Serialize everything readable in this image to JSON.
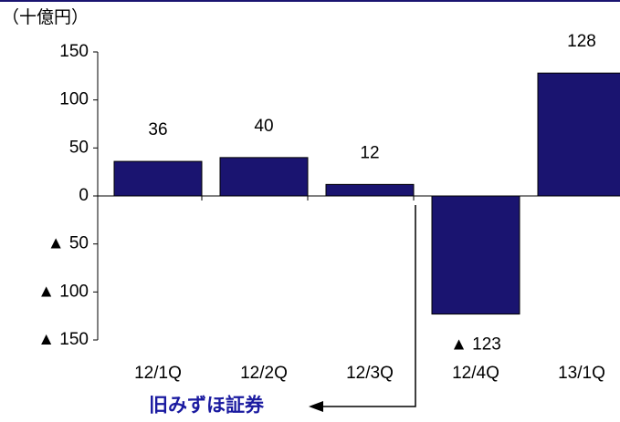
{
  "chart_data": {
    "type": "bar",
    "unit_label": "（十億円）",
    "categories": [
      "12/1Q",
      "12/2Q",
      "12/3Q",
      "12/4Q",
      "13/1Q"
    ],
    "values": [
      36,
      40,
      12,
      -123,
      128
    ],
    "value_labels": [
      "36",
      "40",
      "12",
      "▲ 123",
      "128"
    ],
    "color": "#1a1470",
    "ylim": [
      -150,
      150
    ],
    "yticks": [
      150,
      100,
      50,
      0,
      {
        "value": -50,
        "label": "▲ 50"
      },
      {
        "value": -100,
        "label": "▲ 100"
      },
      {
        "value": -150,
        "label": "▲ 150"
      }
    ],
    "annotation": "旧みずほ証券"
  }
}
